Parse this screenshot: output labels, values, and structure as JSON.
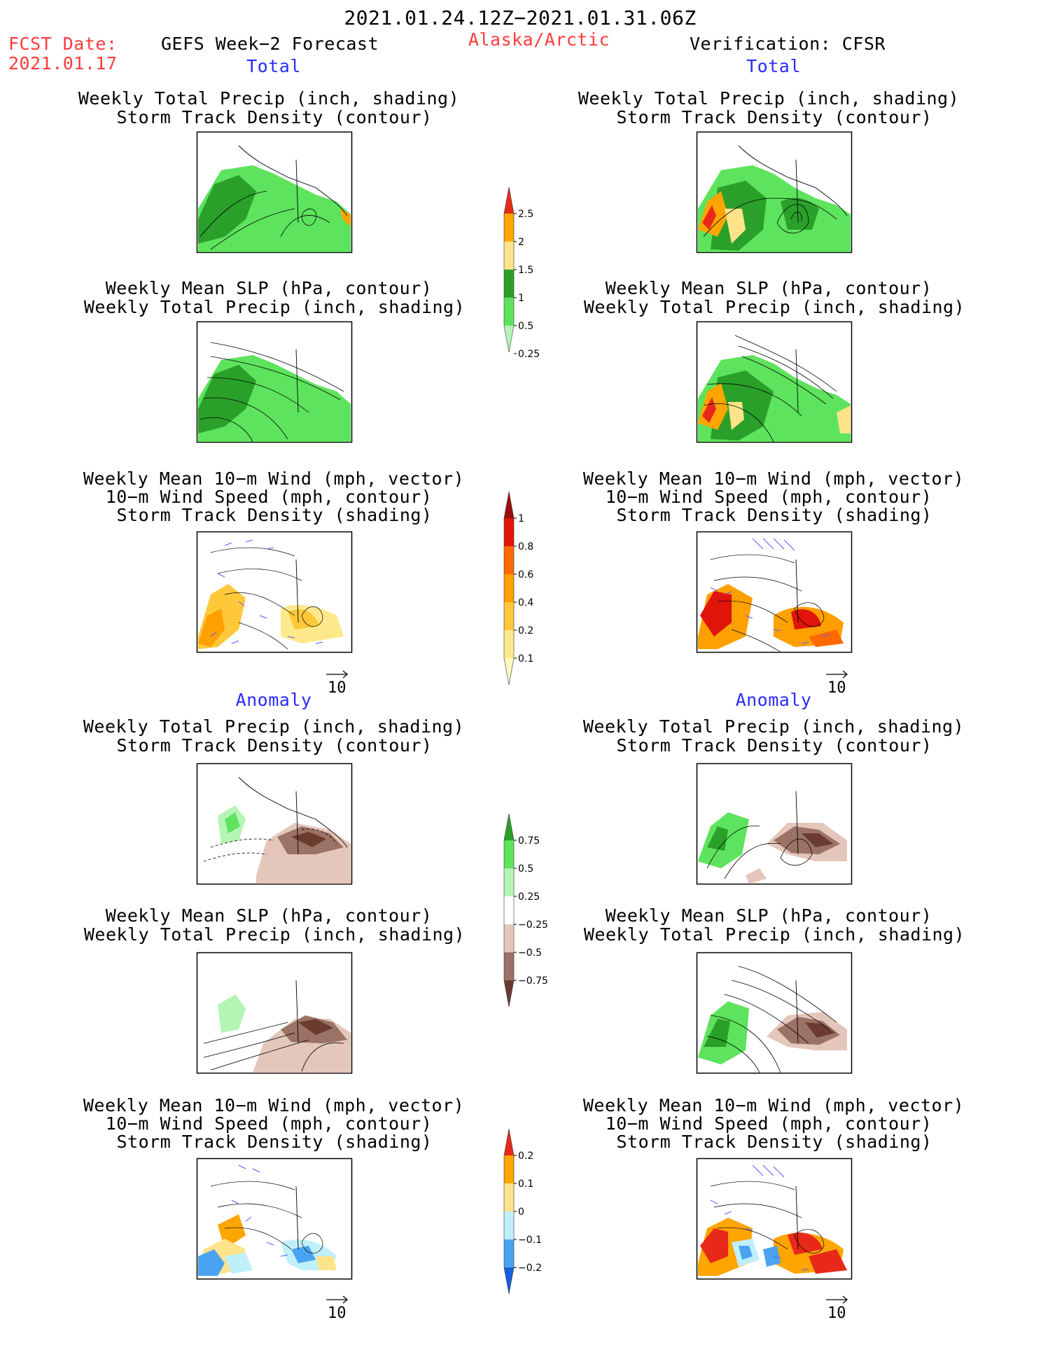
{
  "header": {
    "date_range": "2021.01.24.12Z−2021.01.31.06Z",
    "fcst_label": "FCST Date:",
    "fcst_date": "2021.01.17",
    "forecast_title": "GEFS Week−2 Forecast",
    "region": "Alaska/Arctic",
    "verification": "Verification: CFSR"
  },
  "sections": {
    "total": "Total",
    "anomaly": "Anomaly"
  },
  "panel_titles": {
    "precip_track": [
      "Weekly Total Precip (inch, shading)",
      "Storm Track Density (contour)"
    ],
    "slp_precip": [
      "Weekly Mean SLP (hPa, contour)",
      "Weekly Total Precip (inch, shading)"
    ],
    "wind_track": [
      "Weekly Mean 10−m Wind (mph, vector)",
      "10−m Wind Speed (mph, contour)",
      "Storm Track Density (shading)"
    ]
  },
  "vector_reference": "10",
  "colorbars": [
    {
      "labels": [
        "2.5",
        "2",
        "1.5",
        "1",
        "0.5",
        "0.25"
      ],
      "colors": [
        "#e8291a",
        "#ffa500",
        "#fde38a",
        "#2aa02a",
        "#5de35d",
        "#b4f5b4"
      ]
    },
    {
      "labels": [
        "1",
        "0.8",
        "0.6",
        "0.4",
        "0.2",
        "0.1"
      ],
      "colors": [
        "#9b0f0f",
        "#e0140a",
        "#ff6a00",
        "#ffa000",
        "#ffc83a",
        "#fde98c",
        "#fffabe"
      ]
    },
    {
      "labels": [
        "0.75",
        "0.5",
        "0.25",
        "−0.25",
        "−0.5",
        "−0.75"
      ],
      "colors": [
        "#2aa02a",
        "#5de35d",
        "#b4f5b4",
        "#ffffff",
        "#e5c6bb",
        "#9b7266",
        "#6b3b30"
      ]
    },
    {
      "labels": [
        "0.2",
        "0.1",
        "0",
        "−0.1",
        "−0.2"
      ],
      "colors": [
        "#e8291a",
        "#ffa500",
        "#fde38a",
        "#bff0fa",
        "#4aa3f0",
        "#1660e0"
      ]
    }
  ]
}
